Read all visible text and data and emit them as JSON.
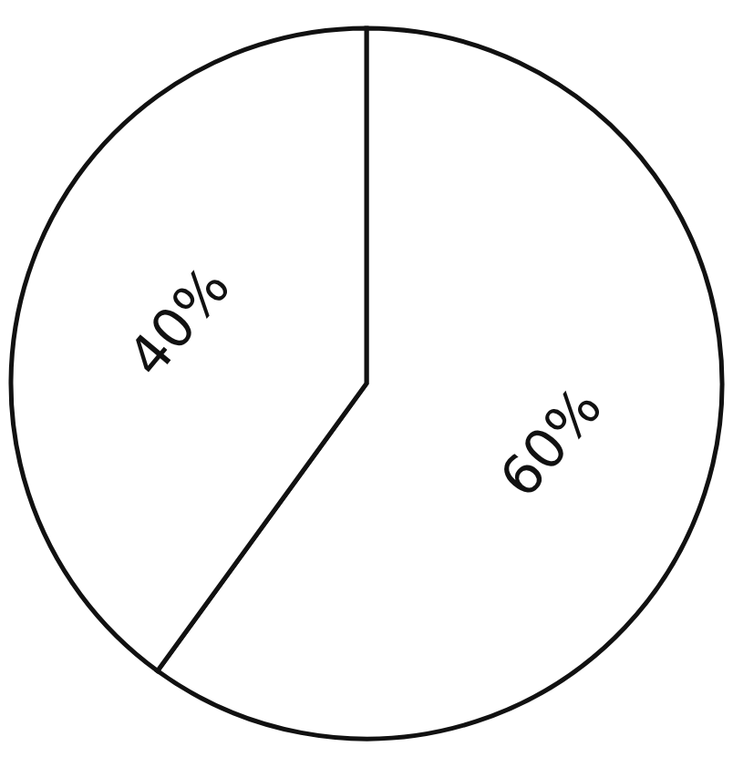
{
  "chart_data": {
    "type": "pie",
    "categories": [
      null,
      null
    ],
    "values": [
      60,
      40
    ],
    "colors": [
      "#ffffff",
      "#ffffff"
    ],
    "value_labels": [
      "60%",
      "40%"
    ]
  }
}
